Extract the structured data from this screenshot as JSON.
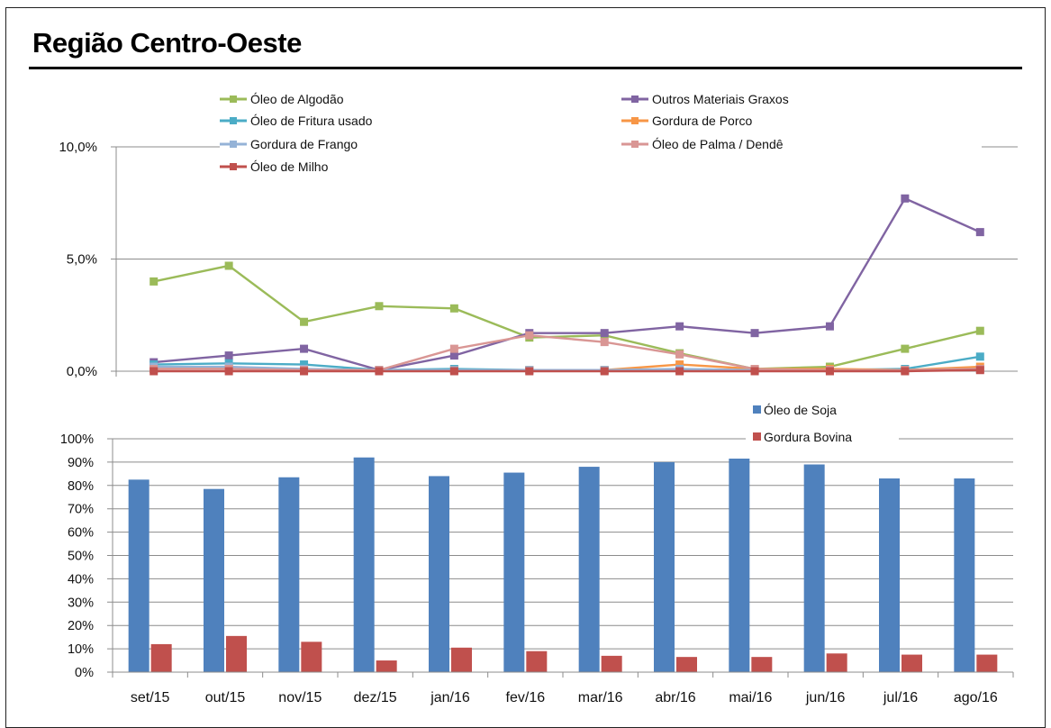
{
  "title": "Região Centro-Oeste",
  "chart_data": [
    {
      "type": "line",
      "categories": [
        "set/15",
        "out/15",
        "nov/15",
        "dez/15",
        "jan/16",
        "fev/16",
        "mar/16",
        "abr/16",
        "mai/16",
        "jun/16",
        "jul/16",
        "ago/16"
      ],
      "y_ticks": [
        "0,0%",
        "5,0%",
        "10,0%"
      ],
      "ylim": [
        0,
        10
      ],
      "grid": true,
      "legend_position": "top",
      "series": [
        {
          "name": "Óleo de Algodão",
          "color": "#9BBB59",
          "values": [
            4.0,
            4.7,
            2.2,
            2.9,
            2.8,
            1.5,
            1.6,
            0.8,
            0.1,
            0.2,
            1.0,
            1.8
          ]
        },
        {
          "name": "Outros Materiais Graxos",
          "color": "#8064A2",
          "values": [
            0.4,
            0.7,
            1.0,
            0.05,
            0.7,
            1.7,
            1.7,
            2.0,
            1.7,
            2.0,
            7.7,
            6.2
          ]
        },
        {
          "name": "Óleo de Fritura usado",
          "color": "#4BACC6",
          "values": [
            0.3,
            0.35,
            0.3,
            0.05,
            0.1,
            0.05,
            0.05,
            0.05,
            0.05,
            0.05,
            0.1,
            0.65
          ]
        },
        {
          "name": "Gordura de Porco",
          "color": "#F79646",
          "values": [
            0.1,
            0.15,
            0.05,
            0.05,
            0.05,
            0.05,
            0.05,
            0.3,
            0.1,
            0.1,
            0.05,
            0.2
          ]
        },
        {
          "name": "Gordura de Frango",
          "color": "#95B3D7",
          "values": [
            0.2,
            0.2,
            0.1,
            0.05,
            0.05,
            0.05,
            0.05,
            0.1,
            0.05,
            0.05,
            0.05,
            0.1
          ]
        },
        {
          "name": "Óleo de Palma / Dendê",
          "color": "#D99694",
          "values": [
            0.1,
            0.1,
            0.05,
            0.05,
            1.0,
            1.6,
            1.3,
            0.75,
            0.1,
            0.05,
            0.05,
            0.1
          ]
        },
        {
          "name": "Óleo de Milho",
          "color": "#C0504D",
          "values": [
            0.0,
            0.0,
            0.0,
            0.0,
            0.0,
            0.0,
            0.0,
            0.0,
            0.0,
            0.0,
            0.0,
            0.05
          ]
        }
      ]
    },
    {
      "type": "bar",
      "categories": [
        "set/15",
        "out/15",
        "nov/15",
        "dez/15",
        "jan/16",
        "fev/16",
        "mar/16",
        "abr/16",
        "mai/16",
        "jun/16",
        "jul/16",
        "ago/16"
      ],
      "y_ticks": [
        "0%",
        "10%",
        "20%",
        "30%",
        "40%",
        "50%",
        "60%",
        "70%",
        "80%",
        "90%",
        "100%"
      ],
      "ylim": [
        0,
        100
      ],
      "grid": true,
      "legend_position": "top-right",
      "series": [
        {
          "name": "Óleo de Soja",
          "color": "#4F81BD",
          "values": [
            82.5,
            78.5,
            83.5,
            92,
            84,
            85.5,
            88,
            90,
            91.5,
            89,
            83,
            83
          ]
        },
        {
          "name": "Gordura Bovina",
          "color": "#C0504D",
          "values": [
            12,
            15.5,
            13,
            5,
            10.5,
            9,
            7,
            6.5,
            6.5,
            8,
            7.5,
            7.5
          ]
        }
      ]
    }
  ]
}
